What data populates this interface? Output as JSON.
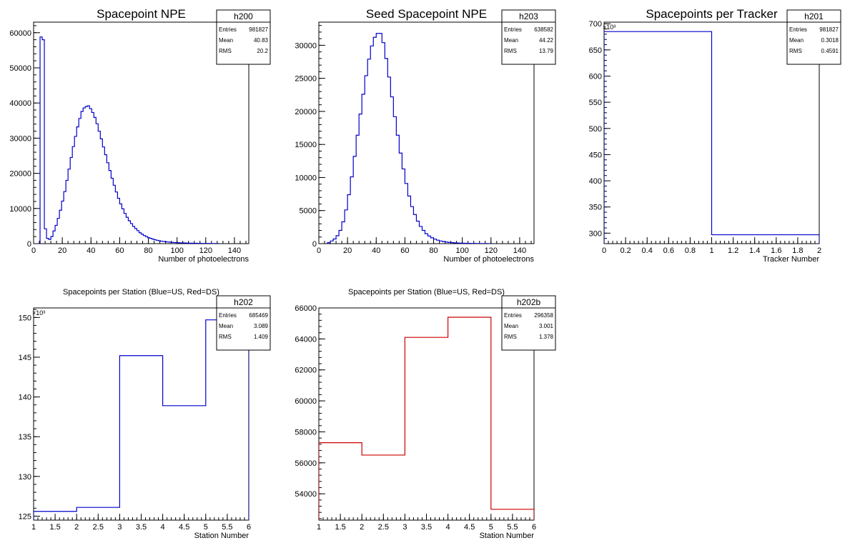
{
  "chart_data": [
    {
      "id": "h200",
      "type": "histogram",
      "title": "Spacepoint NPE",
      "xlabel": "Number of photoelectrons",
      "ylabel": "",
      "xlim": [
        0,
        150
      ],
      "ylim": [
        0,
        63000
      ],
      "xticks": [
        0,
        20,
        40,
        60,
        80,
        100,
        120,
        140
      ],
      "yticks": [
        0,
        10000,
        20000,
        30000,
        40000,
        50000,
        60000
      ],
      "ytick_labels": [
        "0",
        "10000",
        "20000",
        "30000",
        "40000",
        "50000",
        "60000"
      ],
      "y_exponent": "",
      "color": "#0000cc",
      "stats": {
        "name": "h200",
        "Entries": "981827",
        "Mean": "40.83",
        "RMS": "20.2"
      },
      "bin_width": 1.5,
      "x": [
        4.5,
        6,
        7.5,
        9,
        10.5,
        12,
        13.5,
        15,
        16.5,
        18,
        19.5,
        21,
        22.5,
        24,
        25.5,
        27,
        28.5,
        30,
        31.5,
        33,
        34.5,
        36,
        37.5,
        39,
        40.5,
        42,
        43.5,
        45,
        46.5,
        48,
        49.5,
        51,
        52.5,
        54,
        55.5,
        57,
        58.5,
        60,
        61.5,
        63,
        64.5,
        66,
        67.5,
        69,
        70.5,
        72,
        73.5,
        75,
        76.5,
        78,
        79.5,
        81,
        82.5,
        84,
        85.5,
        87,
        88.5,
        90,
        91.5,
        93,
        94.5,
        96,
        97.5,
        99,
        100.5,
        102,
        103.5,
        105,
        106.5,
        108,
        109.5,
        111,
        112.5,
        114,
        115.5,
        117,
        118.5,
        120,
        121.5,
        123,
        124.5,
        126,
        127.5
      ],
      "values": [
        58800,
        58000,
        4200,
        1500,
        1200,
        2000,
        3600,
        5200,
        7200,
        9500,
        12100,
        14800,
        18000,
        21200,
        24500,
        27600,
        30500,
        33200,
        35600,
        37600,
        38600,
        39000,
        39200,
        38400,
        37300,
        35900,
        34100,
        32000,
        29800,
        27500,
        25300,
        23000,
        20800,
        18600,
        16600,
        14700,
        12900,
        11300,
        9900,
        8600,
        7500,
        6500,
        5700,
        4900,
        4300,
        3700,
        3100,
        2700,
        2300,
        2000,
        1700,
        1500,
        1300,
        1100,
        950,
        820,
        700,
        620,
        540,
        470,
        410,
        360,
        320,
        280,
        250,
        220,
        200,
        180,
        160,
        140,
        120,
        110,
        95,
        85,
        75,
        65,
        55,
        50,
        45,
        40,
        35,
        30,
        25
      ]
    },
    {
      "id": "h203",
      "type": "histogram",
      "title": "Seed Spacepoint NPE",
      "xlabel": "Number of photoelectrons",
      "ylabel": "",
      "xlim": [
        0,
        150
      ],
      "ylim": [
        0,
        33500
      ],
      "xticks": [
        0,
        20,
        40,
        60,
        80,
        100,
        120,
        140
      ],
      "yticks": [
        0,
        5000,
        10000,
        15000,
        20000,
        25000,
        30000
      ],
      "ytick_labels": [
        "0",
        "5000",
        "10000",
        "15000",
        "20000",
        "25000",
        "30000"
      ],
      "y_exponent": "",
      "color": "#0000cc",
      "stats": {
        "name": "h203",
        "Entries": "638582",
        "Mean": "44.22",
        "RMS": "13.79"
      },
      "bin_width": 2,
      "x": [
        6,
        8,
        10,
        12,
        14,
        16,
        18,
        20,
        22,
        24,
        26,
        28,
        30,
        32,
        34,
        36,
        38,
        40,
        42,
        44,
        46,
        48,
        50,
        52,
        54,
        56,
        58,
        60,
        62,
        64,
        66,
        68,
        70,
        72,
        74,
        76,
        78,
        80,
        82,
        84,
        86,
        88,
        90,
        92,
        94,
        96,
        98,
        100,
        102,
        104,
        106,
        108,
        110,
        112,
        114,
        116,
        118
      ],
      "values": [
        150,
        400,
        700,
        1200,
        2000,
        3300,
        5100,
        7400,
        10100,
        13200,
        16400,
        19600,
        22600,
        25400,
        27900,
        29900,
        31200,
        31800,
        31800,
        30400,
        28000,
        25200,
        22200,
        19200,
        16400,
        13700,
        11300,
        9100,
        7200,
        5600,
        4400,
        3400,
        2600,
        2000,
        1500,
        1150,
        880,
        680,
        520,
        400,
        310,
        240,
        190,
        150,
        120,
        95,
        75,
        60,
        50,
        40,
        32,
        26,
        20,
        16,
        12,
        10,
        8
      ]
    },
    {
      "id": "h201",
      "type": "histogram",
      "title": "Spacepoints per Tracker",
      "xlabel": "Tracker Number",
      "ylabel": "",
      "xlim": [
        0,
        2
      ],
      "ylim": [
        280,
        703
      ],
      "xticks": [
        0,
        0.2,
        0.4,
        0.6,
        0.8,
        1,
        1.2,
        1.4,
        1.6,
        1.8,
        2
      ],
      "yticks": [
        300,
        350,
        400,
        450,
        500,
        550,
        600,
        650,
        700
      ],
      "ytick_labels": [
        "300",
        "350",
        "400",
        "450",
        "500",
        "550",
        "600",
        "650",
        "700"
      ],
      "y_exponent": "×10³",
      "color": "#0000cc",
      "stats": {
        "name": "h201",
        "Entries": "981827",
        "Mean": "0.3018",
        "RMS": "0.4591"
      },
      "bin_width": 1,
      "x": [
        0,
        1
      ],
      "values": [
        685,
        297
      ]
    },
    {
      "id": "h202",
      "type": "histogram",
      "title": "Spacepoints per Station (Blue=US, Red=DS)",
      "xlabel": "Station Number",
      "ylabel": "",
      "xlim": [
        1,
        6
      ],
      "ylim": [
        124.5,
        151.2
      ],
      "xticks": [
        1,
        1.5,
        2,
        2.5,
        3,
        3.5,
        4,
        4.5,
        5,
        5.5,
        6
      ],
      "yticks": [
        125,
        130,
        135,
        140,
        145,
        150
      ],
      "ytick_labels": [
        "125",
        "130",
        "135",
        "140",
        "145",
        "150"
      ],
      "y_exponent": "×10³",
      "color": "#0000cc",
      "stats": {
        "name": "h202",
        "Entries": "685469",
        "Mean": "3.089",
        "RMS": "1.409"
      },
      "bin_width": 1,
      "x": [
        1,
        2,
        3,
        4,
        5
      ],
      "values": [
        125.6,
        126.1,
        145.2,
        138.9,
        149.7
      ]
    },
    {
      "id": "h202b",
      "type": "histogram",
      "title": "Spacepoints per Station (Blue=US, Red=DS)",
      "xlabel": "Station Number",
      "ylabel": "",
      "xlim": [
        1,
        6
      ],
      "ylim": [
        52300,
        66000
      ],
      "xticks": [
        1,
        1.5,
        2,
        2.5,
        3,
        3.5,
        4,
        4.5,
        5,
        5.5,
        6
      ],
      "yticks": [
        54000,
        56000,
        58000,
        60000,
        62000,
        64000,
        66000
      ],
      "ytick_labels": [
        "54000",
        "56000",
        "58000",
        "60000",
        "62000",
        "64000",
        "66000"
      ],
      "y_exponent": "",
      "color": "#cc0000",
      "stats": {
        "name": "h202b",
        "Entries": "296358",
        "Mean": "3.001",
        "RMS": "1.378"
      },
      "bin_width": 1,
      "x": [
        1,
        2,
        3,
        4,
        5
      ],
      "values": [
        57300,
        56500,
        64100,
        65400,
        53000
      ]
    }
  ]
}
